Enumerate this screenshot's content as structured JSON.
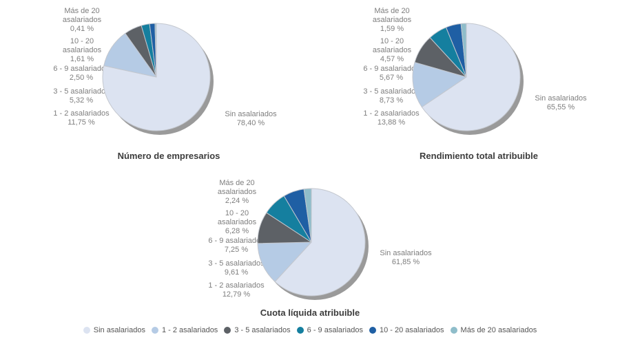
{
  "page": {
    "background": "#ffffff",
    "shadow_color": "#9a9a9a",
    "slice_border_color": "#c3c7ce",
    "label_text_color": "#7e7e7e",
    "title_text_color": "#3c3c3c"
  },
  "chart_data": [
    {
      "type": "pie",
      "title": "Número de empresarios",
      "categories": [
        "Sin asalariados",
        "1 - 2 asalariados",
        "3 - 5 asalariados",
        "6 - 9 asalariados",
        "10 - 20 asalariados",
        "Más de 20 asalariados"
      ],
      "values": [
        78.4,
        11.75,
        5.32,
        2.5,
        1.61,
        0.41
      ],
      "labels_display": [
        "78,40 %",
        "11,75 %",
        "5,32 %",
        "2,50 %",
        "1,61 %",
        "0,41 %"
      ],
      "colors": [
        "#dce3f1",
        "#b5cbe5",
        "#5d6166",
        "#157f9f",
        "#1f5fa4",
        "#8fbdca"
      ],
      "start_angle_deg": -90,
      "direction": "clockwise",
      "legend_position": "bottom"
    },
    {
      "type": "pie",
      "title": "Rendimiento total atribuible",
      "categories": [
        "Sin asalariados",
        "1 - 2 asalariados",
        "3 - 5 asalariados",
        "6 - 9 asalariados",
        "10 - 20 asalariados",
        "Más de 20 asalariados"
      ],
      "values": [
        65.55,
        13.88,
        8.73,
        5.67,
        4.57,
        1.59
      ],
      "labels_display": [
        "65,55 %",
        "13,88 %",
        "8,73 %",
        "5,67 %",
        "4,57 %",
        "1,59 %"
      ],
      "colors": [
        "#dce3f1",
        "#b5cbe5",
        "#5d6166",
        "#157f9f",
        "#1f5fa4",
        "#8fbdca"
      ],
      "start_angle_deg": -90,
      "direction": "clockwise",
      "legend_position": "bottom"
    },
    {
      "type": "pie",
      "title": "Cuota líquida atribuible",
      "categories": [
        "Sin asalariados",
        "1 - 2 asalariados",
        "3 - 5 asalariados",
        "6 - 9 asalariados",
        "10 - 20 asalariados",
        "Más de 20 asalariados"
      ],
      "values": [
        61.85,
        12.79,
        9.61,
        7.25,
        6.28,
        2.24
      ],
      "labels_display": [
        "61,85 %",
        "12,79 %",
        "9,61 %",
        "7,25 %",
        "6,28 %",
        "2,24 %"
      ],
      "colors": [
        "#dce3f1",
        "#b5cbe5",
        "#5d6166",
        "#157f9f",
        "#1f5fa4",
        "#8fbdca"
      ],
      "start_angle_deg": -90,
      "direction": "clockwise",
      "legend_position": "bottom"
    }
  ],
  "legend": {
    "items": [
      {
        "label": "Sin asalariados",
        "color": "#dce3f1"
      },
      {
        "label": "1 - 2 asalariados",
        "color": "#b5cbe5"
      },
      {
        "label": "3 - 5 asalariados",
        "color": "#5d6166"
      },
      {
        "label": "6 - 9 asalariados",
        "color": "#157f9f"
      },
      {
        "label": "10 - 20 asalariados",
        "color": "#1f5fa4"
      },
      {
        "label": "Más de 20 asalariados",
        "color": "#8fbdca"
      }
    ]
  }
}
